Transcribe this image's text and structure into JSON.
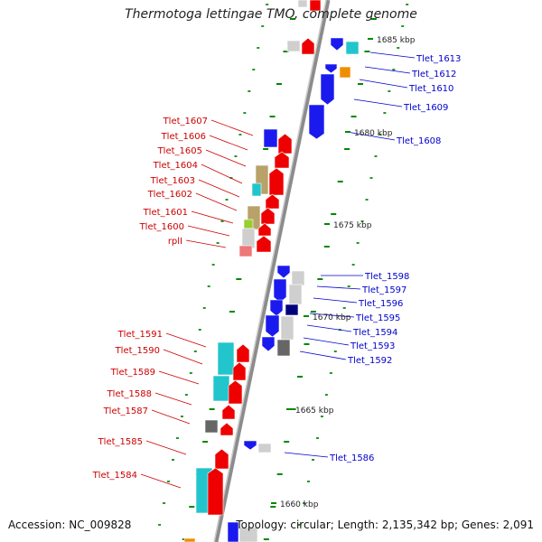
{
  "title": "Thermotoga lettingae TMO, complete genome",
  "accession": "Accession: NC_009828",
  "topology": "Topology: circular; Length: 2,135,342 bp; Genes: 2,091",
  "colors": {
    "forward_label": "#cc0000",
    "reverse_label": "#0000cc",
    "backbone": "#8c8c8c",
    "tick": "#008800"
  },
  "scale_labels": [
    "1685 kbp",
    "1680 kbp",
    "1675 kbp",
    "1670 kbp",
    "1665 kbp",
    "1660 kbp"
  ],
  "forward_genes": [
    "Tlet_1607",
    "Tlet_1606",
    "Tlet_1605",
    "Tlet_1604",
    "Tlet_1603",
    "Tlet_1602",
    "Tlet_1601",
    "Tlet_1600",
    "rplI",
    "Tlet_1591",
    "Tlet_1590",
    "Tlet_1589",
    "Tlet_1588",
    "Tlet_1587",
    "Tlet_1585",
    "Tlet_1584"
  ],
  "reverse_genes": [
    "Tlet_1613",
    "Tlet_1612",
    "Tlet_1610",
    "Tlet_1609",
    "Tlet_1608",
    "Tlet_1598",
    "Tlet_1597",
    "Tlet_1596",
    "Tlet_1595",
    "Tlet_1594",
    "Tlet_1593",
    "Tlet_1592",
    "Tlet_1586"
  ]
}
